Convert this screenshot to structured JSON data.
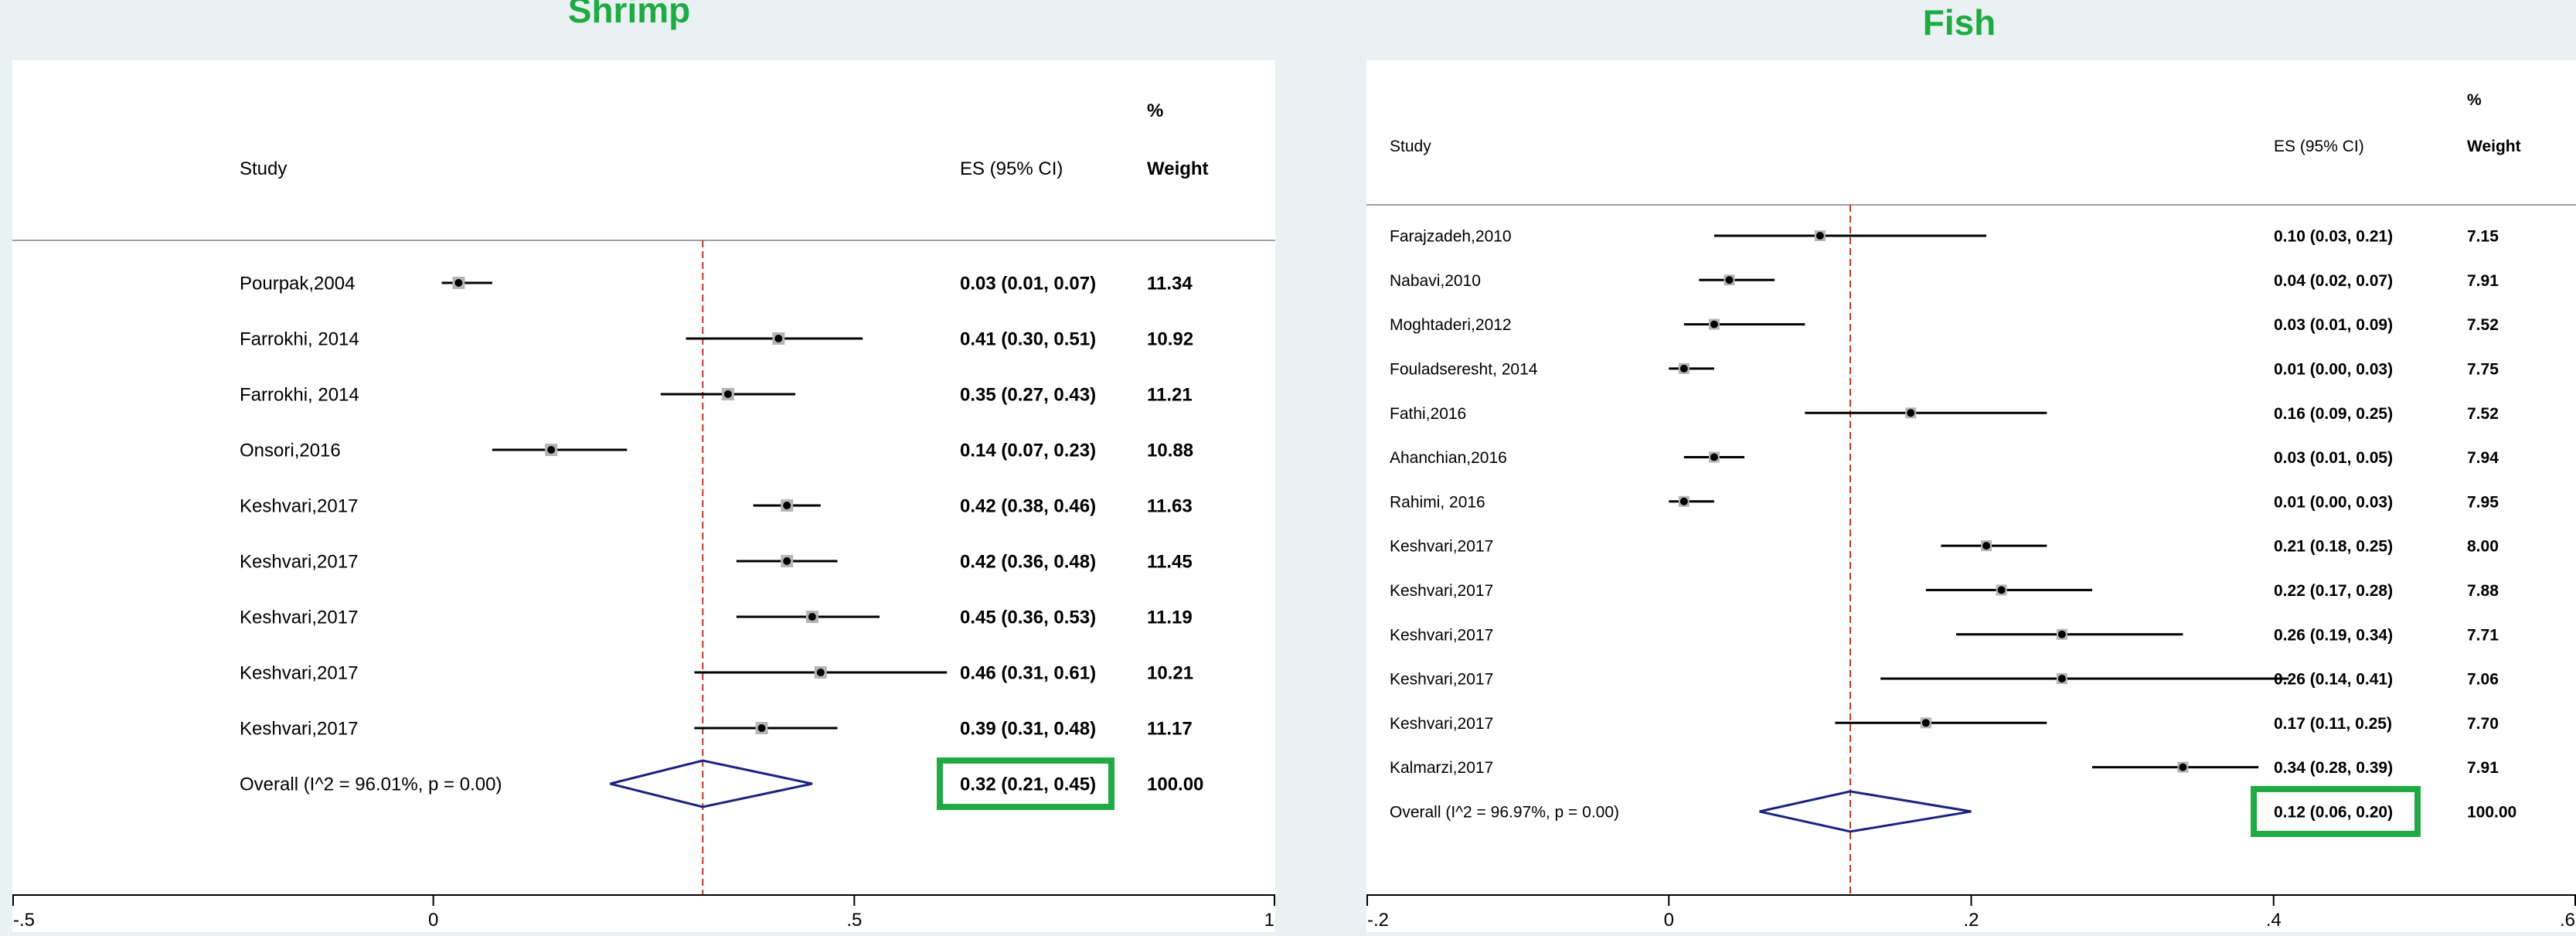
{
  "chart_data": [
    {
      "type": "forest",
      "title": "Shrimp",
      "headers": {
        "study": "Study",
        "es": "ES (95% CI)",
        "weight_top": "%",
        "weight": "Weight"
      },
      "studies": [
        {
          "label": "Pourpak,2004",
          "es": 0.03,
          "lo": 0.01,
          "hi": 0.07,
          "es_text": "0.03 (0.01, 0.07)",
          "weight": "11.34"
        },
        {
          "label": "Farrokhi, 2014",
          "es": 0.41,
          "lo": 0.3,
          "hi": 0.51,
          "es_text": "0.41 (0.30, 0.51)",
          "weight": "10.92"
        },
        {
          "label": "Farrokhi, 2014",
          "es": 0.35,
          "lo": 0.27,
          "hi": 0.43,
          "es_text": "0.35 (0.27, 0.43)",
          "weight": "11.21"
        },
        {
          "label": "Onsori,2016",
          "es": 0.14,
          "lo": 0.07,
          "hi": 0.23,
          "es_text": "0.14 (0.07, 0.23)",
          "weight": "10.88"
        },
        {
          "label": "Keshvari,2017",
          "es": 0.42,
          "lo": 0.38,
          "hi": 0.46,
          "es_text": "0.42 (0.38, 0.46)",
          "weight": "11.63"
        },
        {
          "label": "Keshvari,2017",
          "es": 0.42,
          "lo": 0.36,
          "hi": 0.48,
          "es_text": "0.42 (0.36, 0.48)",
          "weight": "11.45"
        },
        {
          "label": "Keshvari,2017",
          "es": 0.45,
          "lo": 0.36,
          "hi": 0.53,
          "es_text": "0.45 (0.36, 0.53)",
          "weight": "11.19"
        },
        {
          "label": "Keshvari,2017",
          "es": 0.46,
          "lo": 0.31,
          "hi": 0.61,
          "es_text": "0.46 (0.31, 0.61)",
          "weight": "10.21"
        },
        {
          "label": "Keshvari,2017",
          "es": 0.39,
          "lo": 0.31,
          "hi": 0.48,
          "es_text": "0.39 (0.31, 0.48)",
          "weight": "11.17"
        }
      ],
      "overall": {
        "label": "Overall  (I^2 = 96.01%, p = 0.00)",
        "es": 0.32,
        "lo": 0.21,
        "hi": 0.45,
        "es_text": "0.32 (0.21, 0.45)",
        "weight": "100.00"
      },
      "xlim": [
        -0.5,
        1
      ],
      "ticks": [
        {
          "v": -0.5,
          "label": "-.5"
        },
        {
          "v": 0,
          "label": "0"
        },
        {
          "v": 0.5,
          "label": ".5"
        },
        {
          "v": 1,
          "label": "1"
        }
      ],
      "reference_line": 0.32,
      "highlight_box_color": "#1faa44",
      "diamond_color": "#1a237e",
      "reference_line_color": "#c0392b"
    },
    {
      "type": "forest",
      "title": "Fish",
      "headers": {
        "study": "Study",
        "es": "ES (95% CI)",
        "weight_top": "%",
        "weight": "Weight"
      },
      "studies": [
        {
          "label": "Farajzadeh,2010",
          "es": 0.1,
          "lo": 0.03,
          "hi": 0.21,
          "es_text": "0.10 (0.03, 0.21)",
          "weight": "7.15"
        },
        {
          "label": "Nabavi,2010",
          "es": 0.04,
          "lo": 0.02,
          "hi": 0.07,
          "es_text": "0.04 (0.02, 0.07)",
          "weight": "7.91"
        },
        {
          "label": "Moghtaderi,2012",
          "es": 0.03,
          "lo": 0.01,
          "hi": 0.09,
          "es_text": "0.03 (0.01, 0.09)",
          "weight": "7.52"
        },
        {
          "label": "Fouladseresht, 2014",
          "es": 0.01,
          "lo": 0.0,
          "hi": 0.03,
          "es_text": "0.01 (0.00, 0.03)",
          "weight": "7.75"
        },
        {
          "label": "Fathi,2016",
          "es": 0.16,
          "lo": 0.09,
          "hi": 0.25,
          "es_text": "0.16 (0.09, 0.25)",
          "weight": "7.52"
        },
        {
          "label": "Ahanchian,2016",
          "es": 0.03,
          "lo": 0.01,
          "hi": 0.05,
          "es_text": "0.03 (0.01, 0.05)",
          "weight": "7.94"
        },
        {
          "label": "Rahimi, 2016",
          "es": 0.01,
          "lo": 0.0,
          "hi": 0.03,
          "es_text": "0.01 (0.00, 0.03)",
          "weight": "7.95"
        },
        {
          "label": "Keshvari,2017",
          "es": 0.21,
          "lo": 0.18,
          "hi": 0.25,
          "es_text": "0.21 (0.18, 0.25)",
          "weight": "8.00"
        },
        {
          "label": "Keshvari,2017",
          "es": 0.22,
          "lo": 0.17,
          "hi": 0.28,
          "es_text": "0.22 (0.17, 0.28)",
          "weight": "7.88"
        },
        {
          "label": "Keshvari,2017",
          "es": 0.26,
          "lo": 0.19,
          "hi": 0.34,
          "es_text": "0.26 (0.19, 0.34)",
          "weight": "7.71"
        },
        {
          "label": "Keshvari,2017",
          "es": 0.26,
          "lo": 0.14,
          "hi": 0.41,
          "es_text": "0.26 (0.14, 0.41)",
          "weight": "7.06"
        },
        {
          "label": "Keshvari,2017",
          "es": 0.17,
          "lo": 0.11,
          "hi": 0.25,
          "es_text": "0.17 (0.11, 0.25)",
          "weight": "7.70"
        },
        {
          "label": "Kalmarzi,2017",
          "es": 0.34,
          "lo": 0.28,
          "hi": 0.39,
          "es_text": "0.34 (0.28, 0.39)",
          "weight": "7.91"
        }
      ],
      "overall": {
        "label": "Overall  (I^2 = 96.97%, p = 0.00)",
        "es": 0.12,
        "lo": 0.06,
        "hi": 0.2,
        "es_text": "0.12 (0.06, 0.20)",
        "weight": "100.00"
      },
      "xlim": [
        -0.2,
        0.6
      ],
      "ticks": [
        {
          "v": -0.2,
          "label": "-.2"
        },
        {
          "v": 0,
          "label": "0"
        },
        {
          "v": 0.2,
          "label": ".2"
        },
        {
          "v": 0.4,
          "label": ".4"
        },
        {
          "v": 0.6,
          "label": ".6"
        }
      ],
      "reference_line": 0.12,
      "highlight_box_color": "#1faa44",
      "diamond_color": "#1a237e",
      "reference_line_color": "#c0392b"
    }
  ]
}
